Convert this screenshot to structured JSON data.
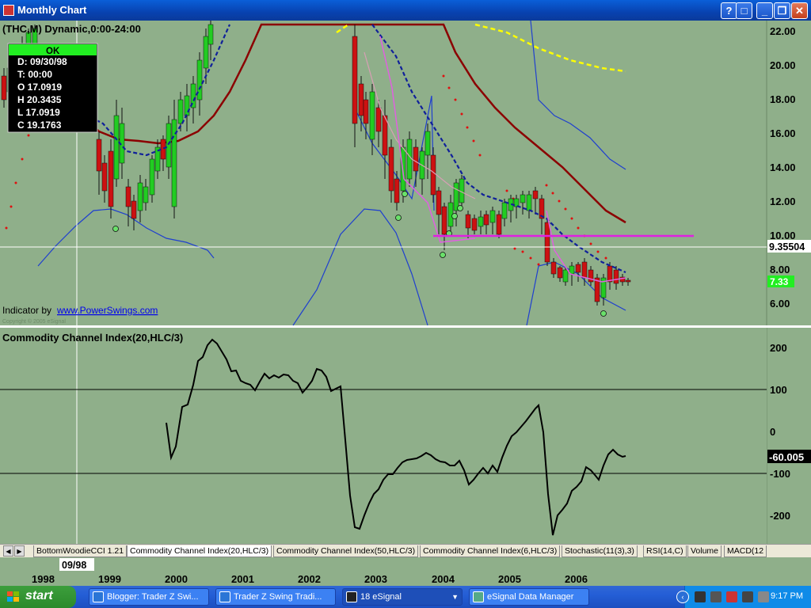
{
  "window": {
    "title": "Monthly Chart",
    "buttons": [
      "?",
      "□",
      "_",
      "❐",
      "✕"
    ]
  },
  "chart": {
    "symbol_line": "(THC,M) Dynamic,0:00-24:00",
    "data_window": {
      "status": "OK",
      "rows": [
        "D: 09/30/98",
        "T: 00:00",
        "O 17.0919",
        "H 20.3435",
        "L 17.0919",
        "C 19.1763"
      ]
    },
    "indicator_credit_prefix": "Indicator by ",
    "indicator_credit_link": "www.PowerSwings.com",
    "copyright": "Copyright © 2005 eSignal",
    "price_axis": [
      "22.00",
      "20.00",
      "18.00",
      "16.00",
      "14.00",
      "12.00",
      "10.00",
      "8.00",
      "6.00"
    ],
    "crosshair_price": "9.35504",
    "last_price_tag": "7.33",
    "cci_title": "Commodity Channel Index(20,HLC/3)",
    "cci_axis": [
      "200",
      "100",
      "0",
      "-100",
      "-200"
    ],
    "cci_value": "-60.005",
    "x_axis": [
      "1998",
      "1999",
      "2000",
      "2001",
      "2002",
      "2003",
      "2004",
      "2005",
      "2006"
    ],
    "crosshair_date": "09/98"
  },
  "tabs": [
    "BottomWoodieCCI 1.21",
    "Commodity Channel Index(20,HLC/3)",
    "Commodity Channel Index(50,HLC/3)",
    "Commodity Channel Index(6,HLC/3)",
    "Stochastic(11(3),3)",
    "RSI(14,C)",
    "Volume",
    "MACD(12"
  ],
  "taskbar": {
    "start": "start",
    "items": [
      "Blogger: Trader Z Swi...",
      "Trader Z Swing Tradi...",
      "18 eSignal",
      "eSignal Data Manager"
    ],
    "clock": "9:17 PM"
  },
  "colors": {
    "chart_bg": "#8faf8a",
    "up_candle": "#22cc22",
    "down_candle": "#cc1111",
    "sma_long": "#8b0000",
    "bollinger": "#1f3fcf",
    "support_line": "#e020e0",
    "sma_yellow": "#ffff00",
    "psar": "#e01010"
  }
}
